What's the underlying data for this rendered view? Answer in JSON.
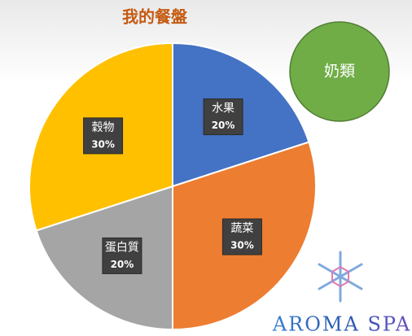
{
  "chart_data": {
    "type": "pie",
    "title": "我的餐盤",
    "categories": [
      "水果",
      "蔬菜",
      "蛋白質",
      "穀物"
    ],
    "values": [
      20,
      30,
      20,
      30
    ],
    "value_labels": [
      "20%",
      "30%",
      "20%",
      "30%"
    ],
    "colors": [
      "#4472c4",
      "#ed7d31",
      "#a5a5a5",
      "#ffc000"
    ]
  },
  "side_circle": {
    "label": "奶類",
    "color": "#70ad47"
  },
  "watermark": {
    "text": "AROMA SPA"
  }
}
